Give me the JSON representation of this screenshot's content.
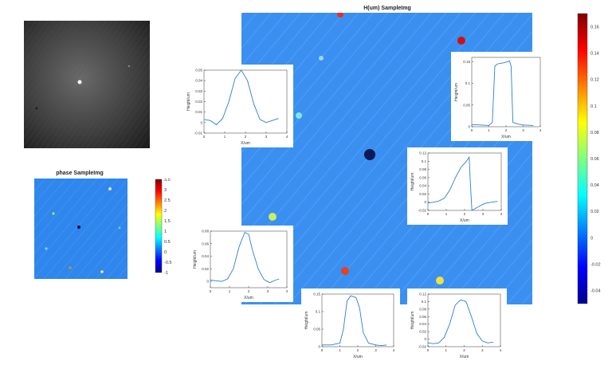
{
  "main_map": {
    "title": "H(um) SampleImg",
    "base_color": "#3a8ff0",
    "colorbar_ticks": [
      "0.16",
      "0.14",
      "0.12",
      "0.1",
      "0.08",
      "0.06",
      "0.04",
      "0.02",
      "0",
      "-0.02",
      "-0.04"
    ],
    "colorbar_range": [
      -0.05,
      0.17
    ]
  },
  "phase_map": {
    "title": "phase SampleImg",
    "colorbar_ticks": [
      "3.5",
      "3",
      "2.5",
      "2",
      "1.5",
      "1",
      "0.5",
      "0",
      "-0.5",
      "-1"
    ],
    "colorbar_range": [
      -1,
      3.5
    ]
  },
  "chart_data": [
    {
      "type": "line",
      "id": "p1",
      "x": [
        0,
        0.3,
        0.6,
        0.9,
        1.2,
        1.5,
        1.8,
        2.1,
        2.4,
        2.7,
        3.0,
        3.3,
        3.6
      ],
      "values": [
        0.003,
        0.002,
        -0.002,
        0.004,
        0.02,
        0.042,
        0.05,
        0.04,
        0.018,
        0.003,
        0,
        0.002,
        0.004
      ],
      "xlabel": "X/um",
      "ylabel": "Height/um",
      "xlim": [
        0,
        4
      ],
      "ylim": [
        -0.01,
        0.05
      ],
      "xticks": [
        "0",
        "1",
        "2",
        "3",
        "4"
      ],
      "yticks": [
        "-0.01",
        "0",
        "0.01",
        "0.02",
        "0.03",
        "0.04",
        "0.05"
      ]
    },
    {
      "type": "line",
      "id": "p2",
      "x": [
        0,
        0.5,
        1.0,
        1.2,
        1.35,
        1.5,
        1.8,
        2.1,
        2.2,
        2.3,
        2.4,
        2.7,
        3.0,
        3.6
      ],
      "values": [
        0.005,
        0.004,
        0.003,
        0.01,
        0.14,
        0.145,
        0.147,
        0.15,
        0.152,
        0.14,
        0.01,
        0.006,
        0.004,
        0.003
      ],
      "xlabel": "X/um",
      "ylabel": "Height/um",
      "xlim": [
        0,
        4
      ],
      "ylim": [
        0,
        0.16
      ],
      "xticks": [
        "0",
        "1",
        "2",
        "3",
        "4"
      ],
      "yticks": [
        "0",
        "0.05",
        "0.1",
        "0.15"
      ]
    },
    {
      "type": "line",
      "id": "p3",
      "x": [
        0,
        0.3,
        0.6,
        0.9,
        1.2,
        1.5,
        1.8,
        2.1,
        2.25,
        2.3,
        2.4,
        2.6,
        2.8,
        3.0,
        3.2,
        3.5,
        3.8
      ],
      "values": [
        -0.002,
        0,
        0.003,
        0.01,
        0.03,
        0.06,
        0.085,
        0.1,
        0.11,
        0.06,
        -0.02,
        -0.015,
        -0.01,
        -0.005,
        -0.002,
        0,
        0.002
      ],
      "xlabel": "X/um",
      "ylabel": "Height/um",
      "xlim": [
        0,
        4
      ],
      "ylim": [
        -0.02,
        0.12
      ],
      "xticks": [
        "0",
        "1",
        "2",
        "3",
        "4"
      ],
      "yticks": [
        "-0.02",
        "0",
        "0.02",
        "0.04",
        "0.06",
        "0.08",
        "0.1",
        "0.12"
      ]
    },
    {
      "type": "line",
      "id": "p4",
      "x": [
        0,
        0.3,
        0.6,
        0.9,
        1.2,
        1.5,
        1.8,
        2.0,
        2.2,
        2.5,
        2.8,
        3.1,
        3.4,
        3.6
      ],
      "values": [
        0.002,
        0.001,
        0,
        0.004,
        0.02,
        0.055,
        0.078,
        0.075,
        0.05,
        0.02,
        0.003,
        -0.002,
        0.002,
        0.004
      ],
      "xlabel": "X/um",
      "ylabel": "Height/um",
      "xlim": [
        0,
        4
      ],
      "ylim": [
        -0.01,
        0.08
      ],
      "xticks": [
        "0",
        "1",
        "2",
        "3",
        "4"
      ],
      "yticks": [
        "0",
        "0.02",
        "0.04",
        "0.06",
        "0.08"
      ]
    },
    {
      "type": "line",
      "id": "p5",
      "x": [
        0,
        0.5,
        1.0,
        1.2,
        1.4,
        1.6,
        1.9,
        2.1,
        2.3,
        2.6,
        3.0,
        3.3,
        3.6
      ],
      "values": [
        0.005,
        0.005,
        0.01,
        0.05,
        0.13,
        0.145,
        0.14,
        0.11,
        0.04,
        0.01,
        0.005,
        0.003,
        0.005
      ],
      "xlabel": "X/um",
      "ylabel": "Height/um",
      "xlim": [
        0,
        4
      ],
      "ylim": [
        0,
        0.15
      ],
      "xticks": [
        "0",
        "1",
        "2",
        "3",
        "4"
      ],
      "yticks": [
        "0",
        "0.05",
        "0.1",
        "0.15"
      ]
    },
    {
      "type": "line",
      "id": "p6",
      "x": [
        0,
        0.3,
        0.6,
        0.9,
        1.2,
        1.5,
        1.8,
        2.1,
        2.4,
        2.7,
        3.0,
        3.3,
        3.6
      ],
      "values": [
        -0.01,
        -0.012,
        -0.01,
        0.005,
        0.04,
        0.09,
        0.105,
        0.1,
        0.06,
        0.015,
        -0.005,
        -0.01,
        -0.008
      ],
      "xlabel": "X/um",
      "ylabel": "Height/um",
      "xlim": [
        0,
        4
      ],
      "ylim": [
        -0.02,
        0.12
      ],
      "xticks": [
        "0",
        "1",
        "2",
        "3",
        "4"
      ],
      "yticks": [
        "-0.02",
        "0",
        "0.02",
        "0.04",
        "0.06",
        "0.08",
        "0.1",
        "0.12"
      ]
    }
  ]
}
